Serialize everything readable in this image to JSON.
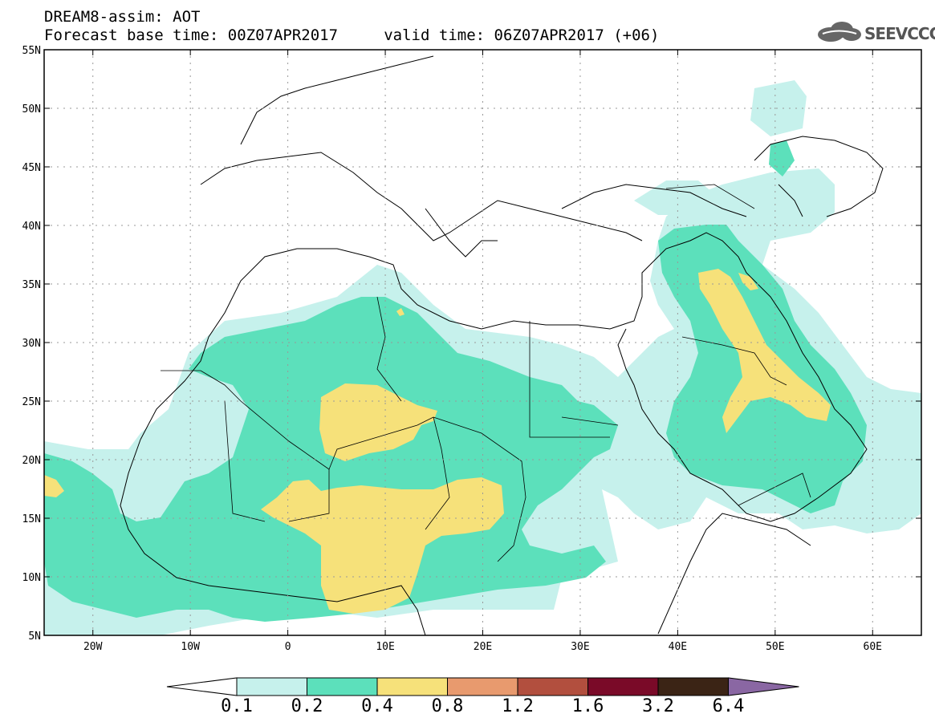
{
  "header": {
    "line1": "DREAM8-assim: AOT",
    "line2": "Forecast base time: 00Z07APR2017     valid time: 06Z07APR2017 (+06)"
  },
  "logo": {
    "text": "SEEVCCC",
    "icon": "cloud-icon"
  },
  "map": {
    "lat_labels": [
      "55N",
      "50N",
      "45N",
      "40N",
      "35N",
      "30N",
      "25N",
      "20N",
      "15N",
      "10N",
      "5N"
    ],
    "lon_labels": [
      "20W",
      "10W",
      "0",
      "10E",
      "20E",
      "30E",
      "40E",
      "50E",
      "60E"
    ],
    "lon_range": [
      -25,
      65
    ],
    "lat_range": [
      5,
      55
    ],
    "grid": true
  },
  "colorbar": {
    "labels": [
      "0.1",
      "0.2",
      "0.4",
      "0.8",
      "1.2",
      "1.6",
      "3.2",
      "6.4"
    ],
    "colors": [
      "#ffffff",
      "#c6f1ec",
      "#5ce0bb",
      "#f6e17a",
      "#e89a6e",
      "#b24f3e",
      "#7a0a28",
      "#3b2415",
      "#8a67a3"
    ]
  }
}
